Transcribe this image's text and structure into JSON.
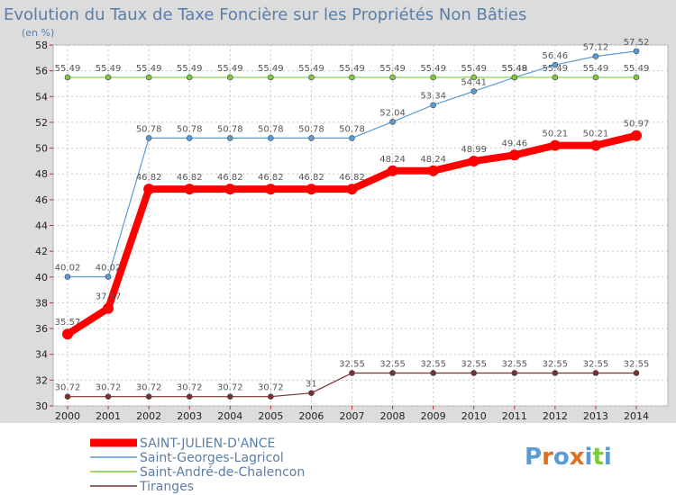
{
  "chart_data": {
    "type": "line",
    "title": "Evolution du Taux de Taxe Foncière sur les Propriétés Non Bâties",
    "unit_label": "(en %)",
    "x": [
      "2000",
      "2001",
      "2002",
      "2003",
      "2004",
      "2005",
      "2006",
      "2007",
      "2008",
      "2009",
      "2010",
      "2011",
      "2012",
      "2013",
      "2014"
    ],
    "ylim": [
      30,
      58
    ],
    "yticks": [
      30,
      32,
      34,
      36,
      38,
      40,
      42,
      44,
      46,
      48,
      50,
      52,
      54,
      56,
      58
    ],
    "grid": true,
    "legend_position": "bottom-left",
    "series": [
      {
        "name": "SAINT-JULIEN-D'ANCE",
        "color": "#ff0000",
        "style": "thick",
        "values": [
          35.57,
          37.57,
          46.82,
          46.82,
          46.82,
          46.82,
          46.82,
          46.82,
          48.24,
          48.24,
          48.99,
          49.46,
          50.21,
          50.21,
          50.97
        ],
        "labels": [
          "35.57",
          "37.57",
          "46.82",
          "46.82",
          "46.82",
          "46.82",
          "46.82",
          "46.82",
          "48.24",
          "48.24",
          "48.99",
          "49.46",
          "50.21",
          "50.21",
          "50.97"
        ]
      },
      {
        "name": "Saint-Georges-Lagricol",
        "color": "#5b9bd5",
        "style": "thin",
        "values": [
          40.02,
          40.02,
          50.78,
          50.78,
          50.78,
          50.78,
          50.78,
          50.78,
          52.04,
          53.34,
          54.41,
          55.48,
          56.46,
          57.12,
          57.52
        ],
        "labels": [
          "40.02",
          "40.02",
          "50.78",
          "50.78",
          "50.78",
          "50.78",
          "50.78",
          "50.78",
          "52.04",
          "53.34",
          "54.41",
          "55.48",
          "56.46",
          "57.12",
          "57.52"
        ]
      },
      {
        "name": "Saint-André-de-Chalencon",
        "color": "#7ccc3a",
        "style": "thin",
        "values": [
          55.49,
          55.49,
          55.49,
          55.49,
          55.49,
          55.49,
          55.49,
          55.49,
          55.49,
          55.49,
          55.49,
          55.49,
          55.49,
          55.49,
          55.49
        ],
        "labels": [
          "55.49",
          "55.49",
          "55.49",
          "55.49",
          "55.49",
          "55.49",
          "55.49",
          "55.49",
          "55.49",
          "55.49",
          "55.49",
          "55.49",
          "55.49",
          "55.49",
          "55.49"
        ]
      },
      {
        "name": "Tiranges",
        "color": "#7a3030",
        "style": "thin",
        "values": [
          30.72,
          30.72,
          30.72,
          30.72,
          30.72,
          30.72,
          31,
          32.55,
          32.55,
          32.55,
          32.55,
          32.55,
          32.55,
          32.55,
          32.55
        ],
        "labels": [
          "30.72",
          "30.72",
          "30.72",
          "30.72",
          "30.72",
          "30.72",
          "31",
          "32.55",
          "32.55",
          "32.55",
          "32.55",
          "32.55",
          "32.55",
          "32.55",
          "32.55"
        ]
      }
    ]
  },
  "logo": {
    "text": "Proxiti",
    "colors": [
      "#5b9bd5",
      "#e07020",
      "#5b9bd5",
      "#e07020",
      "#5b9bd5",
      "#7ccc3a",
      "#5b9bd5"
    ]
  }
}
